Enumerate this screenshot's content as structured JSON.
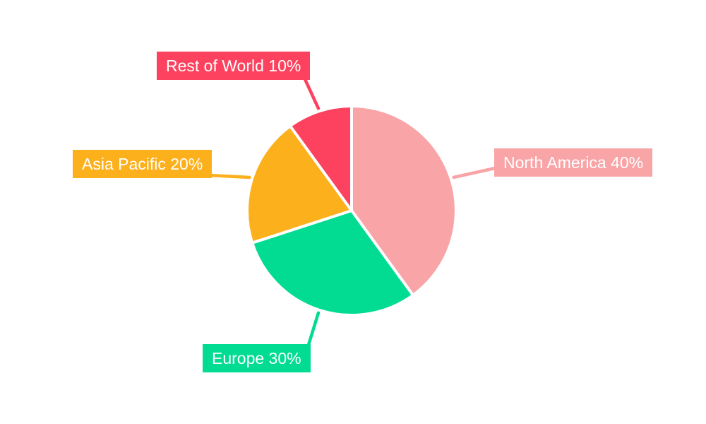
{
  "chart_data": {
    "type": "pie",
    "title": "",
    "legend": "none",
    "direction": "clockwise",
    "start_angle_deg": 0,
    "background_color": "#FFFFFF",
    "label_text_color": "#FFFFFF",
    "categories": [
      "North America",
      "Europe",
      "Asia Pacific",
      "Rest of World"
    ],
    "values": [
      40,
      30,
      20,
      10
    ],
    "slices": [
      {
        "id": "north-america",
        "name": "North America",
        "value": 40,
        "label": "North America 40%",
        "color": "#F9A4A7"
      },
      {
        "id": "europe",
        "name": "Europe",
        "value": 30,
        "label": "Europe 30%",
        "color": "#02DC92"
      },
      {
        "id": "asia-pacific",
        "name": "Asia Pacific",
        "value": 20,
        "label": "Asia Pacific 20%",
        "color": "#FCB01C"
      },
      {
        "id": "rest-of-world",
        "name": "Rest of World",
        "value": 10,
        "label": "Rest of World 10%",
        "color": "#FC425E"
      }
    ]
  }
}
